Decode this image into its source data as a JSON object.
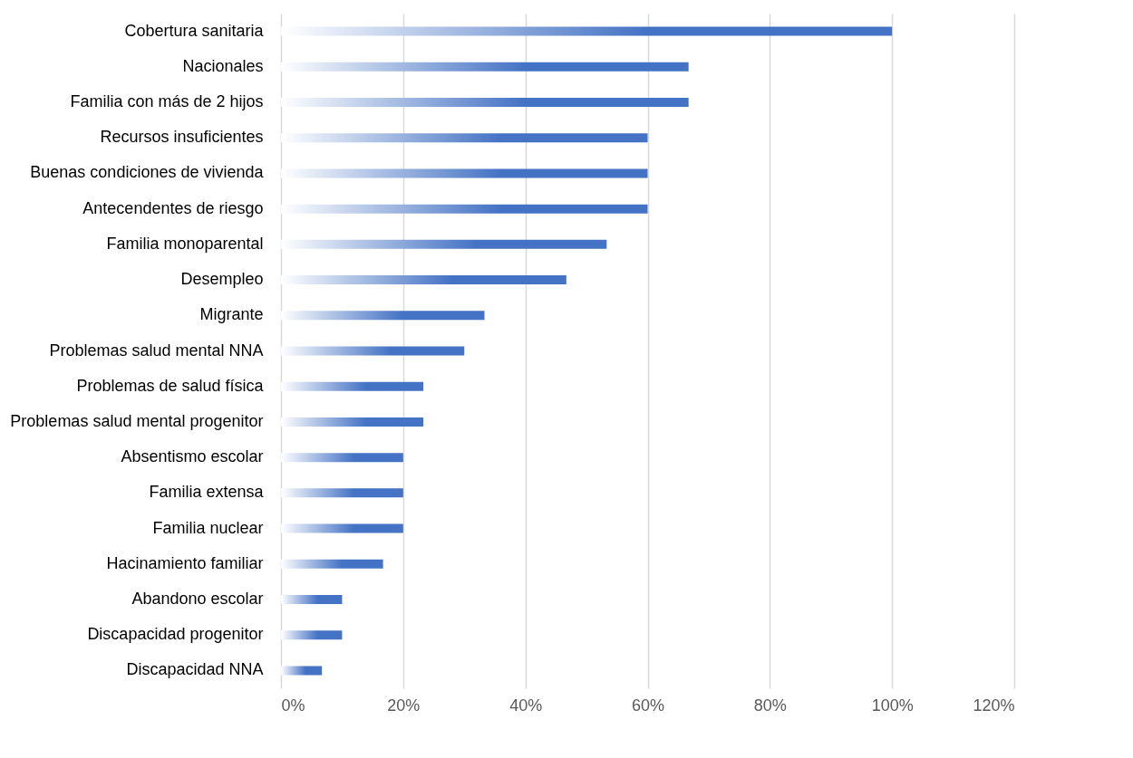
{
  "chart_data": {
    "type": "bar",
    "orientation": "horizontal",
    "categories": [
      "Cobertura sanitaria",
      "Nacionales",
      "Familia con más de 2 hijos",
      "Recursos insuficientes",
      "Buenas condiciones de vivienda",
      "Antecendentes de riesgo",
      "Familia monoparental",
      "Desempleo",
      "Migrante",
      "Problemas salud mental NNA",
      "Problemas de salud física",
      "Problemas salud mental progenitor",
      "Absentismo escolar",
      "Familia extensa",
      "Familia nuclear",
      "Hacinamiento familiar",
      "Abandono escolar",
      "Discapacidad progenitor",
      "Discapacidad NNA"
    ],
    "values": [
      100,
      66.7,
      66.7,
      60,
      60,
      60,
      53.3,
      46.7,
      33.3,
      30,
      23.3,
      23.3,
      20,
      20,
      20,
      16.7,
      10,
      10,
      6.7
    ],
    "color": "#4472c4",
    "xlim": [
      0,
      120
    ],
    "xticks": [
      {
        "value": 0,
        "label": "0%"
      },
      {
        "value": 20,
        "label": "20%"
      },
      {
        "value": 40,
        "label": "40%"
      },
      {
        "value": 60,
        "label": "60%"
      },
      {
        "value": 80,
        "label": "80%"
      },
      {
        "value": 100,
        "label": "100%"
      },
      {
        "value": 120,
        "label": "120%"
      }
    ],
    "grid": "x",
    "legend": false
  }
}
